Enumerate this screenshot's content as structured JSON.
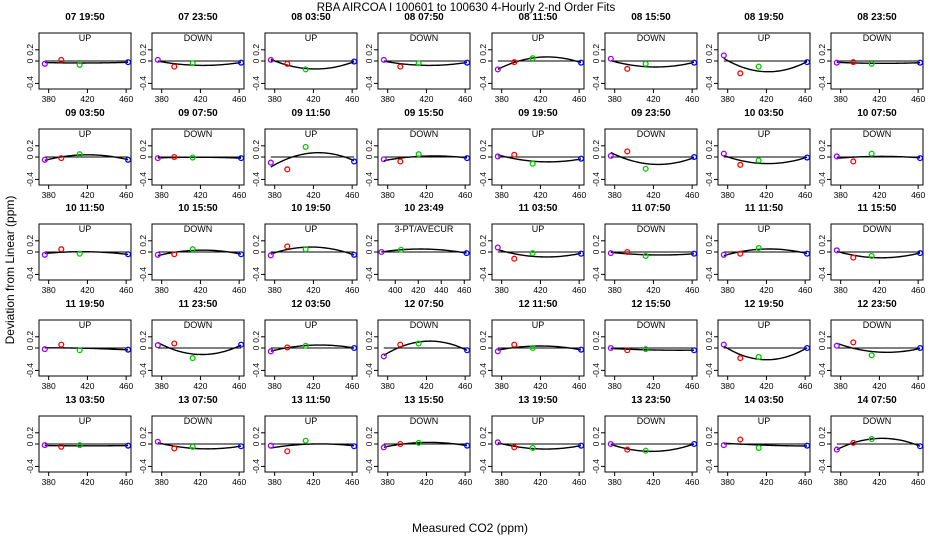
{
  "figure": {
    "title": "RBA   AIRCOA I   100601 to 100630   4-Hourly 2-nd Order Fits",
    "ylabel": "Deviation from Linear (ppm)",
    "xlabel": "Measured CO2 (ppm)"
  },
  "chart_data": {
    "type": "scatter",
    "title": "RBA   AIRCOA I   100601 to 100630   4-Hourly 2-nd Order Fits",
    "xlabel": "Measured CO2 (ppm)",
    "ylabel": "Deviation from Linear (ppm)",
    "xlim": [
      370,
      465
    ],
    "ylim": [
      -0.5,
      0.5
    ],
    "xticks": [
      380,
      420,
      460
    ],
    "yticks": [
      -0.4,
      0.0,
      0.2
    ],
    "point_colors": {
      "purple": "#9900ff",
      "red": "#ff0000",
      "green": "#00cc00",
      "blue": "#0000ff"
    },
    "panels": [
      {
        "title": "07 19:50",
        "direction": "UP",
        "points": [
          [
            376,
            -0.05
          ],
          [
            393,
            0.02
          ],
          [
            412,
            -0.07
          ],
          [
            462,
            -0.02
          ]
        ]
      },
      {
        "title": "07 23:50",
        "direction": "DOWN",
        "points": [
          [
            376,
            0.02
          ],
          [
            393,
            -0.1
          ],
          [
            412,
            -0.04
          ],
          [
            462,
            -0.03
          ]
        ]
      },
      {
        "title": "08 03:50",
        "direction": "UP",
        "points": [
          [
            376,
            0.02
          ],
          [
            393,
            -0.05
          ],
          [
            412,
            -0.15
          ],
          [
            462,
            -0.01
          ]
        ]
      },
      {
        "title": "08 07:50",
        "direction": "DOWN",
        "points": [
          [
            376,
            0.02
          ],
          [
            393,
            -0.1
          ],
          [
            412,
            -0.04
          ],
          [
            462,
            -0.03
          ]
        ]
      },
      {
        "title": "08 11:50",
        "direction": "UP",
        "points": [
          [
            376,
            -0.15
          ],
          [
            393,
            -0.02
          ],
          [
            412,
            0.05
          ],
          [
            462,
            -0.03
          ]
        ]
      },
      {
        "title": "08 15:50",
        "direction": "DOWN",
        "points": [
          [
            376,
            0.04
          ],
          [
            393,
            -0.14
          ],
          [
            412,
            -0.05
          ],
          [
            462,
            -0.03
          ]
        ]
      },
      {
        "title": "08 19:50",
        "direction": "UP",
        "points": [
          [
            376,
            0.1
          ],
          [
            393,
            -0.22
          ],
          [
            412,
            -0.1
          ],
          [
            462,
            -0.02
          ]
        ]
      },
      {
        "title": "08 23:50",
        "direction": "DOWN",
        "points": [
          [
            376,
            -0.03
          ],
          [
            393,
            -0.02
          ],
          [
            412,
            -0.05
          ],
          [
            462,
            -0.03
          ]
        ]
      },
      {
        "title": "09 03:50",
        "direction": "UP",
        "points": [
          [
            376,
            -0.05
          ],
          [
            393,
            -0.02
          ],
          [
            412,
            0.05
          ],
          [
            462,
            -0.05
          ]
        ]
      },
      {
        "title": "09 07:50",
        "direction": "DOWN",
        "points": [
          [
            376,
            -0.02
          ],
          [
            393,
            0.0
          ],
          [
            412,
            -0.01
          ],
          [
            462,
            -0.02
          ]
        ]
      },
      {
        "title": "09 11:50",
        "direction": "UP",
        "points": [
          [
            376,
            -0.1
          ],
          [
            393,
            -0.22
          ],
          [
            412,
            0.18
          ],
          [
            462,
            -0.08
          ]
        ]
      },
      {
        "title": "09 15:50",
        "direction": "DOWN",
        "points": [
          [
            376,
            -0.04
          ],
          [
            393,
            -0.08
          ],
          [
            412,
            0.05
          ],
          [
            462,
            -0.02
          ]
        ]
      },
      {
        "title": "09 19:50",
        "direction": "UP",
        "points": [
          [
            376,
            0.01
          ],
          [
            393,
            0.04
          ],
          [
            412,
            -0.12
          ],
          [
            462,
            -0.03
          ]
        ]
      },
      {
        "title": "09 23:50",
        "direction": "DOWN",
        "points": [
          [
            376,
            0.02
          ],
          [
            393,
            0.1
          ],
          [
            412,
            -0.21
          ],
          [
            462,
            0.0
          ]
        ]
      },
      {
        "title": "10 03:50",
        "direction": "UP",
        "points": [
          [
            376,
            0.06
          ],
          [
            393,
            -0.14
          ],
          [
            412,
            -0.06
          ],
          [
            462,
            -0.01
          ]
        ]
      },
      {
        "title": "10 07:50",
        "direction": "DOWN",
        "points": [
          [
            376,
            0.01
          ],
          [
            393,
            -0.08
          ],
          [
            412,
            0.06
          ],
          [
            462,
            -0.02
          ]
        ]
      },
      {
        "title": "10 11:50",
        "direction": "UP",
        "points": [
          [
            376,
            -0.05
          ],
          [
            393,
            0.05
          ],
          [
            412,
            -0.03
          ],
          [
            462,
            -0.04
          ]
        ]
      },
      {
        "title": "10 15:50",
        "direction": "DOWN",
        "points": [
          [
            376,
            -0.05
          ],
          [
            393,
            -0.04
          ],
          [
            412,
            0.05
          ],
          [
            462,
            -0.04
          ]
        ]
      },
      {
        "title": "10 19:50",
        "direction": "UP",
        "points": [
          [
            376,
            -0.06
          ],
          [
            393,
            0.1
          ],
          [
            412,
            0.05
          ],
          [
            462,
            -0.05
          ]
        ]
      },
      {
        "title": "10 23:49",
        "direction": "3-PT/AVECUR",
        "xlim": [
          385,
          465
        ],
        "xticks": [
          400,
          420,
          440,
          460
        ],
        "points": [
          [
            388,
            0.0
          ],
          [
            405,
            0.04
          ],
          [
            462,
            -0.02
          ]
        ]
      },
      {
        "title": "11 03:50",
        "direction": "UP",
        "points": [
          [
            376,
            0.08
          ],
          [
            393,
            -0.12
          ],
          [
            412,
            -0.02
          ],
          [
            462,
            -0.03
          ]
        ]
      },
      {
        "title": "11 07:50",
        "direction": "DOWN",
        "points": [
          [
            376,
            -0.02
          ],
          [
            393,
            0.0
          ],
          [
            412,
            -0.07
          ],
          [
            462,
            -0.03
          ]
        ]
      },
      {
        "title": "11 11:50",
        "direction": "UP",
        "points": [
          [
            376,
            -0.05
          ],
          [
            393,
            -0.03
          ],
          [
            412,
            0.07
          ],
          [
            462,
            -0.03
          ]
        ]
      },
      {
        "title": "11 15:50",
        "direction": "DOWN",
        "points": [
          [
            376,
            0.03
          ],
          [
            393,
            -0.1
          ],
          [
            412,
            -0.07
          ],
          [
            462,
            -0.02
          ]
        ]
      },
      {
        "title": "11 19:50",
        "direction": "UP",
        "points": [
          [
            376,
            -0.02
          ],
          [
            393,
            0.06
          ],
          [
            412,
            -0.04
          ],
          [
            462,
            -0.03
          ]
        ]
      },
      {
        "title": "11 23:50",
        "direction": "DOWN",
        "points": [
          [
            376,
            0.05
          ],
          [
            393,
            0.08
          ],
          [
            412,
            -0.18
          ],
          [
            462,
            0.06
          ]
        ]
      },
      {
        "title": "12 03:50",
        "direction": "UP",
        "points": [
          [
            376,
            -0.06
          ],
          [
            393,
            0.01
          ],
          [
            412,
            0.04
          ],
          [
            462,
            0.0
          ]
        ]
      },
      {
        "title": "12 07:50",
        "direction": "DOWN",
        "points": [
          [
            376,
            -0.15
          ],
          [
            393,
            0.06
          ],
          [
            412,
            0.08
          ],
          [
            462,
            -0.04
          ]
        ]
      },
      {
        "title": "12 11:50",
        "direction": "UP",
        "points": [
          [
            376,
            -0.06
          ],
          [
            393,
            0.06
          ],
          [
            412,
            0.0
          ],
          [
            462,
            -0.03
          ]
        ]
      },
      {
        "title": "12 15:50",
        "direction": "DOWN",
        "points": [
          [
            376,
            0.0
          ],
          [
            393,
            -0.04
          ],
          [
            412,
            -0.02
          ],
          [
            462,
            -0.04
          ]
        ]
      },
      {
        "title": "12 19:50",
        "direction": "UP",
        "points": [
          [
            376,
            0.06
          ],
          [
            393,
            -0.18
          ],
          [
            412,
            -0.16
          ],
          [
            462,
            0.0
          ]
        ]
      },
      {
        "title": "12 23:50",
        "direction": "DOWN",
        "points": [
          [
            376,
            0.04
          ],
          [
            393,
            0.1
          ],
          [
            412,
            -0.13
          ],
          [
            462,
            0.0
          ]
        ]
      },
      {
        "title": "13 03:50",
        "direction": "UP",
        "points": [
          [
            376,
            -0.02
          ],
          [
            393,
            -0.05
          ],
          [
            412,
            -0.02
          ],
          [
            462,
            -0.03
          ]
        ]
      },
      {
        "title": "13 07:50",
        "direction": "DOWN",
        "points": [
          [
            376,
            0.04
          ],
          [
            393,
            -0.08
          ],
          [
            412,
            -0.05
          ],
          [
            462,
            -0.04
          ]
        ]
      },
      {
        "title": "13 11:50",
        "direction": "UP",
        "points": [
          [
            376,
            -0.03
          ],
          [
            393,
            -0.13
          ],
          [
            412,
            0.06
          ],
          [
            462,
            -0.04
          ]
        ]
      },
      {
        "title": "13 15:50",
        "direction": "DOWN",
        "points": [
          [
            376,
            -0.06
          ],
          [
            393,
            0.0
          ],
          [
            412,
            0.02
          ],
          [
            462,
            -0.03
          ]
        ]
      },
      {
        "title": "13 19:50",
        "direction": "UP",
        "points": [
          [
            376,
            0.03
          ],
          [
            393,
            -0.06
          ],
          [
            412,
            -0.07
          ],
          [
            462,
            -0.03
          ]
        ]
      },
      {
        "title": "13 23:50",
        "direction": "DOWN",
        "points": [
          [
            376,
            0.0
          ],
          [
            393,
            -0.1
          ],
          [
            412,
            -0.12
          ],
          [
            462,
            0.0
          ]
        ]
      },
      {
        "title": "14 03:50",
        "direction": "UP",
        "points": [
          [
            376,
            -0.02
          ],
          [
            393,
            0.08
          ],
          [
            412,
            -0.07
          ],
          [
            462,
            -0.03
          ]
        ]
      },
      {
        "title": "14 07:50",
        "direction": "DOWN",
        "points": [
          [
            376,
            -0.1
          ],
          [
            393,
            0.02
          ],
          [
            412,
            0.09
          ],
          [
            462,
            -0.04
          ]
        ]
      }
    ]
  }
}
